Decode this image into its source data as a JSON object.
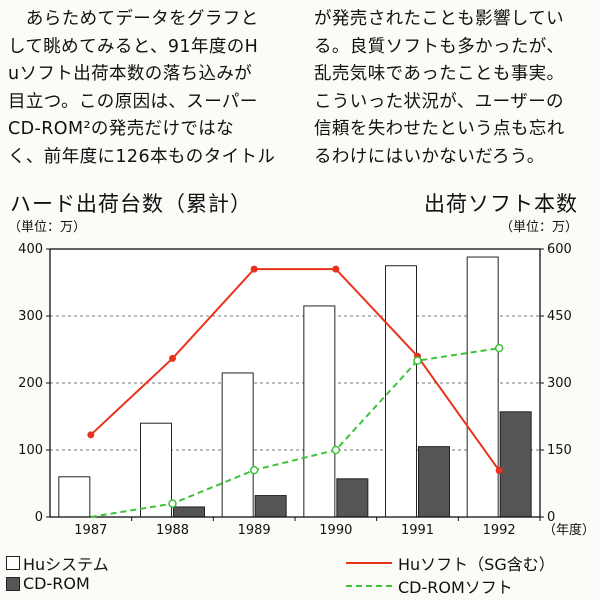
{
  "article": {
    "left_lines": [
      "　あらためてデータをグラフと",
      "して眺めてみると、91年度のH",
      "uソフト出荷本数の落ち込みが",
      "目立つ。この原因は、スーパー",
      "CD-ROM²の発売だけではな",
      "く、前年度に126本ものタイトル"
    ],
    "right_lines": [
      "が発売されたことも影響してい",
      "る。良質ソフトも多かったが、",
      "乱売気味であったことも事実。",
      "こういった状況が、ユーザーの",
      "信頼を失わせたという点も忘れ",
      "るわけにはいかないだろう。"
    ]
  },
  "chart_data": {
    "type": "bar",
    "left_title": "ハード出荷台数（累計）",
    "left_unit": "（単位：万）",
    "right_title": "出荷ソフト本数",
    "right_unit": "（単位：万）",
    "xlabel": "（年度）",
    "categories": [
      "1987",
      "1988",
      "1989",
      "1990",
      "1991",
      "1992"
    ],
    "left_axis": {
      "ylim": [
        0,
        400
      ],
      "ticks": [
        0,
        100,
        200,
        300,
        400
      ]
    },
    "right_axis": {
      "ylim": [
        0,
        600
      ],
      "ticks": [
        0,
        150,
        300,
        450,
        600
      ]
    },
    "grid": "dashed horizontal",
    "bar_series": [
      {
        "name": "Huシステム",
        "axis": "left",
        "color": "#ffffff",
        "values": [
          60,
          140,
          215,
          315,
          375,
          388
        ]
      },
      {
        "name": "CD-ROM",
        "axis": "left",
        "color": "#555555",
        "values": [
          0,
          15,
          32,
          57,
          105,
          157
        ]
      }
    ],
    "line_series": [
      {
        "name": "Huソフト（SG含む）",
        "axis": "right",
        "color": "#e8321e",
        "style": "solid",
        "values": [
          184,
          355,
          555,
          555,
          360,
          104
        ]
      },
      {
        "name": "CD-ROMソフト",
        "axis": "right",
        "color": "#3ec23a",
        "style": "dashed",
        "values": [
          0,
          30,
          105,
          150,
          350,
          378
        ]
      }
    ]
  }
}
